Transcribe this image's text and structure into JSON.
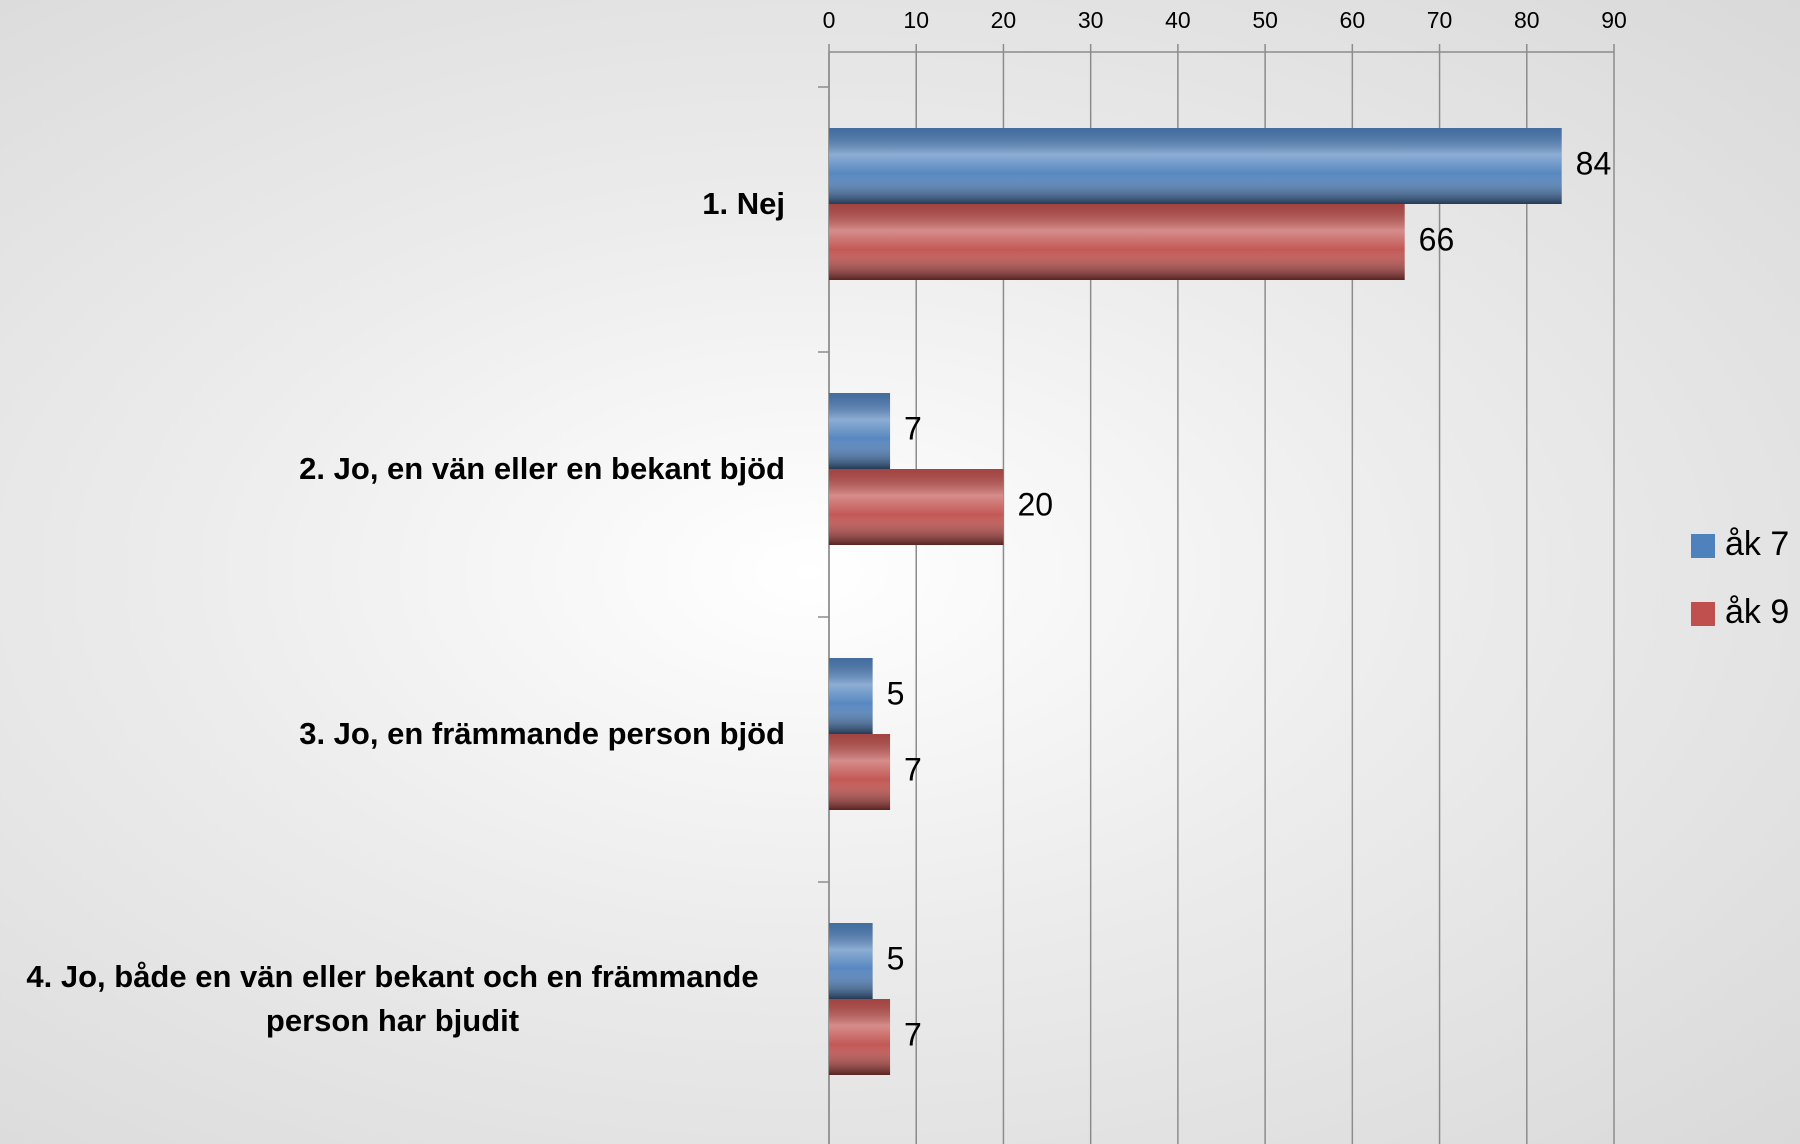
{
  "chart_data": {
    "type": "bar",
    "orientation": "horizontal",
    "categories": [
      "1. Nej",
      "2. Jo, en vän eller en bekant bjöd",
      "3. Jo, en främmande person bjöd",
      "4. Jo, både en vän eller bekant och en främmande person har bjudit"
    ],
    "series": [
      {
        "name": "åk 7",
        "color": "#4f81bd",
        "values": [
          84,
          7,
          5,
          5
        ]
      },
      {
        "name": "åk 9",
        "color": "#c0504d",
        "values": [
          66,
          20,
          7,
          7
        ]
      }
    ],
    "xlim": [
      0,
      90
    ],
    "xticks": [
      0,
      10,
      20,
      30,
      40,
      50,
      60,
      70,
      80,
      90
    ],
    "grid": true,
    "legend": "right"
  }
}
